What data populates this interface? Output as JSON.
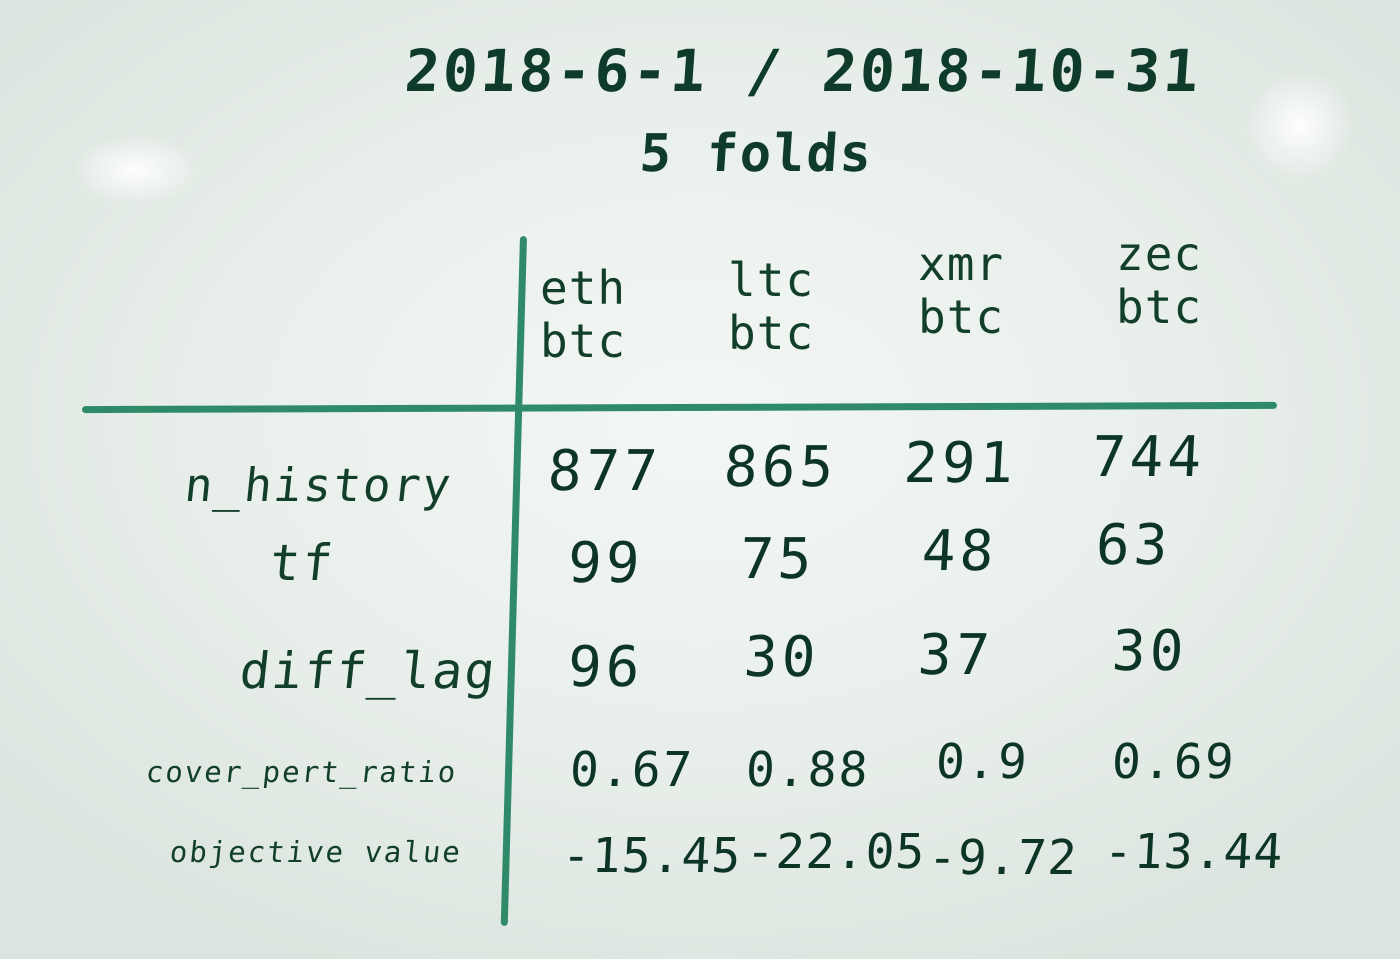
{
  "title": "2018-6-1 / 2018-10-31",
  "subtitle": "5 folds",
  "columns": [
    {
      "line1": "eth",
      "line2": "btc"
    },
    {
      "line1": "ltc",
      "line2": "btc"
    },
    {
      "line1": "xmr",
      "line2": "btc"
    },
    {
      "line1": "zec",
      "line2": "btc"
    }
  ],
  "rows": [
    {
      "label": "n_history",
      "values": [
        "877",
        "865",
        "291",
        "744"
      ]
    },
    {
      "label": "tf",
      "values": [
        "99",
        "75",
        "48",
        "63"
      ]
    },
    {
      "label": "diff_lag",
      "values": [
        "96",
        "30",
        "37",
        "30"
      ]
    },
    {
      "label": "cover_pert_ratio",
      "values": [
        "0.67",
        "0.88",
        "0.9",
        "0.69"
      ]
    },
    {
      "label": "objective value",
      "values": [
        "-15.45",
        "-22.05",
        "-9.72",
        "-13.44"
      ]
    }
  ],
  "colors": {
    "board": "#e7eee9",
    "ink": "#0f3b2a",
    "grid_line": "#2f8a6a"
  }
}
